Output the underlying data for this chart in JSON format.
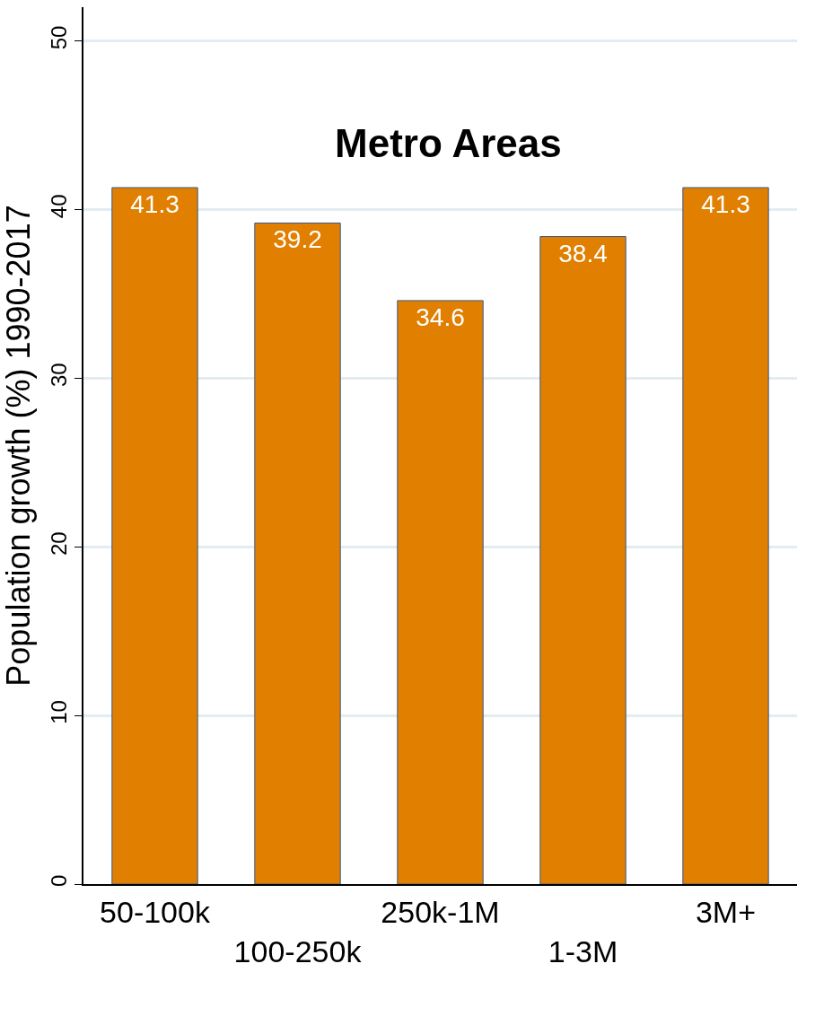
{
  "chart_data": {
    "type": "bar",
    "title": "Metro Areas",
    "ylabel": "Population growth (%) 1990-2017",
    "categories": [
      "50-100k",
      "100-250k",
      "250k-1M",
      "1-3M",
      "3M+"
    ],
    "values": [
      41.3,
      39.2,
      34.6,
      38.4,
      41.3
    ],
    "color": "#e07f00",
    "ylim": [
      0,
      52
    ],
    "yticks": [
      0,
      10,
      20,
      30,
      40,
      50
    ],
    "grid": "y",
    "data_labels": true,
    "legend": false
  }
}
